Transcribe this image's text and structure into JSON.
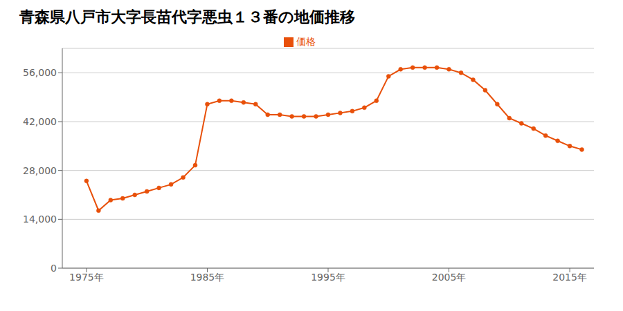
{
  "chart_data": {
    "type": "line",
    "title": "青森県八戸市大字長苗代字悪虫１３番の地価推移",
    "x": [
      1975,
      1976,
      1977,
      1978,
      1979,
      1980,
      1981,
      1982,
      1983,
      1984,
      1985,
      1986,
      1987,
      1988,
      1989,
      1990,
      1991,
      1992,
      1993,
      1994,
      1995,
      1996,
      1997,
      1998,
      1999,
      2000,
      2001,
      2002,
      2003,
      2004,
      2005,
      2006,
      2007,
      2008,
      2009,
      2010,
      2011,
      2012,
      2013,
      2014,
      2015,
      2016
    ],
    "series": [
      {
        "name": "価格",
        "color": "#E8500A",
        "values": [
          25000,
          16500,
          19500,
          20000,
          21000,
          22000,
          23000,
          24000,
          26000,
          29500,
          47000,
          48000,
          48000,
          47500,
          47000,
          44000,
          44000,
          43500,
          43500,
          43500,
          44000,
          44500,
          45000,
          46000,
          48000,
          55000,
          57000,
          57500,
          57500,
          57500,
          57000,
          56000,
          54000,
          51000,
          47000,
          43000,
          41500,
          40000,
          38000,
          36500,
          35000,
          34000
        ]
      }
    ],
    "xlim": [
      1973,
      2017
    ],
    "xticks": [
      {
        "value": 1975,
        "label": "1975年"
      },
      {
        "value": 1985,
        "label": "1985年"
      },
      {
        "value": 1995,
        "label": "1995年"
      },
      {
        "value": 2005,
        "label": "2005年"
      },
      {
        "value": 2015,
        "label": "2015年"
      }
    ],
    "ylim": [
      0,
      63000
    ],
    "yticks": [
      0,
      {
        "value": 14000,
        "label": "14,000"
      },
      {
        "value": 28000,
        "label": "28,000"
      },
      {
        "value": 42000,
        "label": "42,000"
      },
      {
        "value": 56000,
        "label": "56,000"
      }
    ],
    "grid": "y",
    "legend": "top",
    "marker": "circle"
  }
}
